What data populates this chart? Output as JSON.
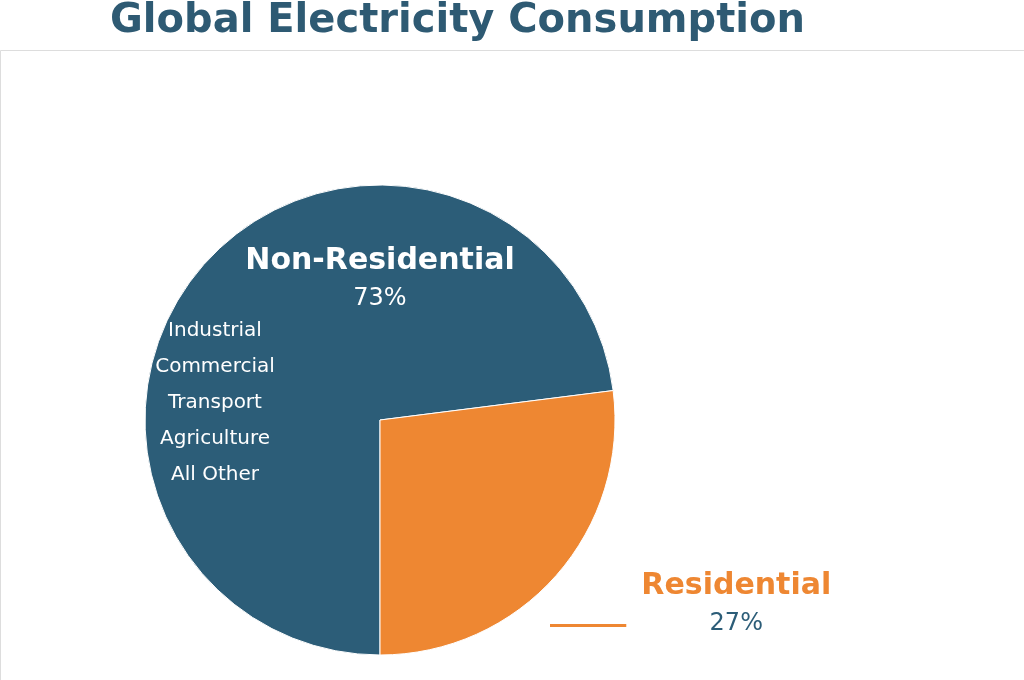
{
  "chart_data": {
    "type": "pie",
    "title": "Global Electricity Consumption",
    "categories": [
      "Non-Residential",
      "Residential"
    ],
    "values": [
      73,
      27
    ],
    "value_labels": [
      "73%",
      "27%"
    ],
    "colors": [
      "#2c5d78",
      "#ee8732"
    ],
    "legend": false,
    "annotations": [
      "Industrial",
      "Commercial",
      "Transport",
      "Agriculture",
      "All Other"
    ]
  }
}
